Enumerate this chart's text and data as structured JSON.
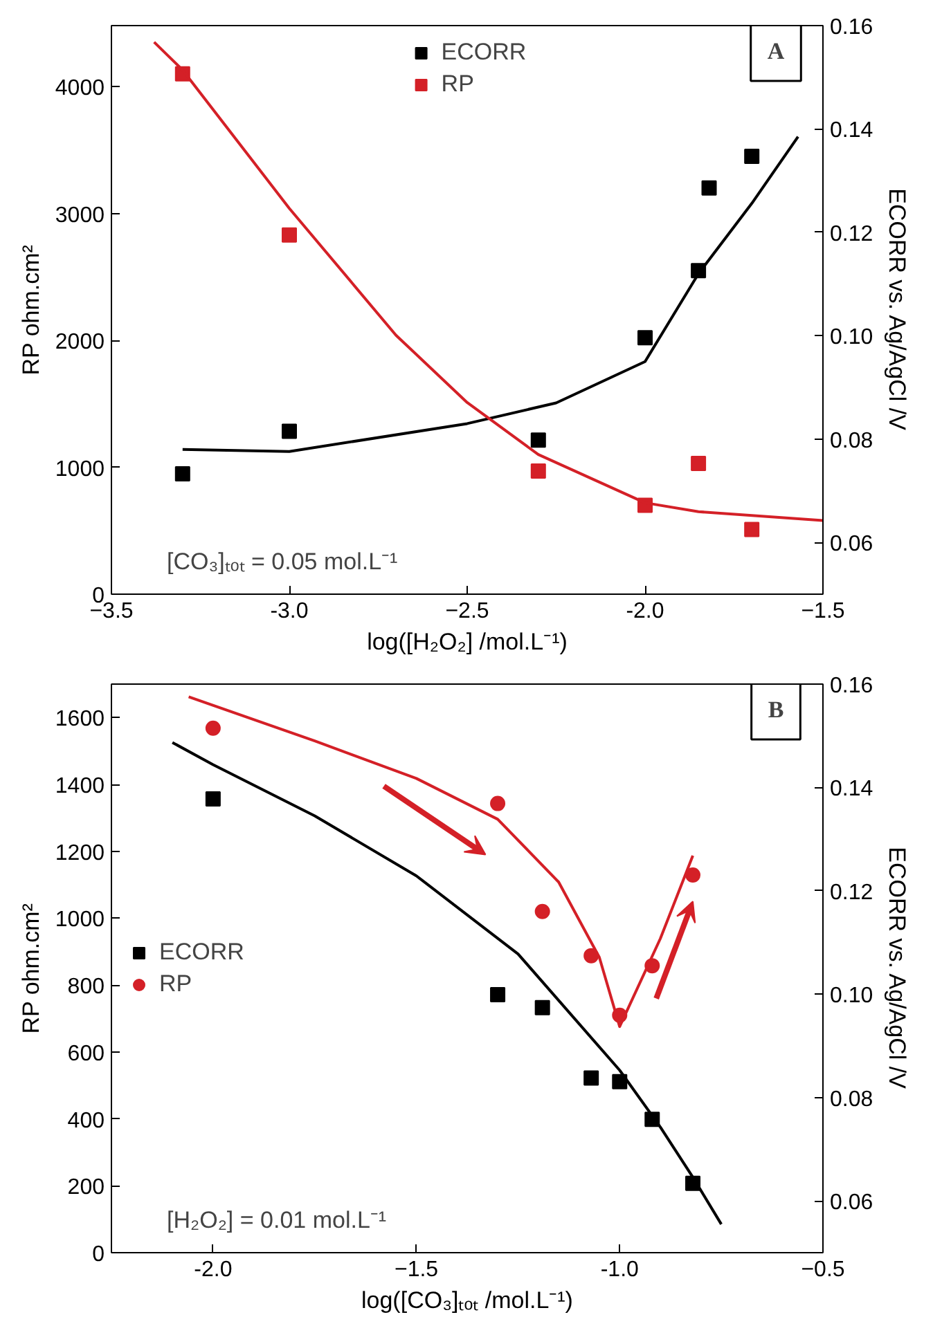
{
  "chart_data": [
    {
      "type": "scatter",
      "xlabel": "log([H₂O₂] /mol.L⁻¹)",
      "ylabel": "RP ohm.cm²",
      "y2label": "ECORR vs. Ag/AgCl /V",
      "annotations": [
        "A",
        "[CO₃]ₜₒₜ = 0.05 mol.L⁻¹"
      ],
      "xlim": [
        -3.5,
        -1.5
      ],
      "xticks": [
        -3.5,
        {
          "value": -3.0,
          "label": "-3.0"
        },
        -2.5,
        {
          "value": -2.0,
          "label": "-2.0"
        },
        -1.5
      ],
      "ylim": [
        0,
        4480
      ],
      "yticks": [
        0,
        1000,
        2000,
        3000,
        4000
      ],
      "y2lim": [
        0.05,
        0.16
      ],
      "y2ticks": [
        0.06,
        0.08,
        {
          "value": 0.1,
          "label": "0.10"
        },
        0.12,
        0.14,
        0.16
      ],
      "grid": false,
      "legend": "top",
      "series": [
        {
          "name": "ECORR",
          "marker": "square",
          "color": "#000000",
          "axis": "y2",
          "x": [
            -3.3,
            -3.0,
            -2.3,
            -2.0,
            -1.85,
            -1.82,
            -1.7
          ],
          "values": [
            0.0733,
            0.0815,
            0.0798,
            0.0996,
            0.1126,
            0.1286,
            0.1347
          ]
        },
        {
          "name": "RP",
          "marker": "square",
          "color": "#d42027",
          "x": [
            -3.3,
            -3.0,
            -2.3,
            -2.0,
            -1.85,
            -1.7
          ],
          "values": [
            4100,
            2830,
            970,
            700,
            1030,
            510
          ]
        },
        {
          "type": "line",
          "color": "#000000",
          "axis": "y2",
          "x": [
            -3.3,
            -3.0,
            -2.5,
            -2.25,
            -2.0,
            -1.85,
            -1.7,
            -1.57
          ],
          "values": [
            0.078,
            0.0776,
            0.083,
            0.087,
            0.095,
            0.112,
            0.1256,
            0.1385
          ]
        },
        {
          "type": "line",
          "color": "#d42027",
          "x": [
            -3.38,
            -3.3,
            -3.0,
            -2.7,
            -2.5,
            -2.3,
            -2.0,
            -1.85,
            -1.5
          ],
          "values": [
            4350,
            4130,
            3040,
            2040,
            1510,
            1100,
            720,
            650,
            580
          ]
        }
      ]
    },
    {
      "type": "scatter",
      "xlabel": "log([CO₃]ₜₒₜ /mol.L⁻¹)",
      "ylabel": "RP ohm.cm²",
      "y2label": "ECORR vs. Ag/AgCl /V",
      "annotations": [
        "B",
        "[H₂O₂] = 0.01 mol.L⁻¹"
      ],
      "xlim": [
        -2.25,
        -0.5
      ],
      "xticks": [
        {
          "value": -2.0,
          "label": "-2.0"
        },
        -1.5,
        {
          "value": -1.0,
          "label": "-1.0"
        },
        -0.5
      ],
      "ylim": [
        0,
        1700
      ],
      "yticks": [
        0,
        200,
        400,
        600,
        800,
        1000,
        1200,
        1400,
        1600
      ],
      "y2lim": [
        0.05,
        0.16
      ],
      "y2ticks": [
        0.06,
        0.08,
        {
          "value": 0.1,
          "label": "0.10"
        },
        0.12,
        0.14,
        0.16
      ],
      "grid": false,
      "legend": "left",
      "series": [
        {
          "name": "ECORR",
          "marker": "square",
          "color": "#000000",
          "axis": "y2",
          "x": [
            -2.0,
            -1.3,
            -1.19,
            -1.07,
            -1.0,
            -0.92,
            -0.82
          ],
          "values": [
            0.1378,
            0.0999,
            0.0974,
            0.0838,
            0.0831,
            0.0758,
            0.0634
          ]
        },
        {
          "name": "RP",
          "marker": "circle",
          "color": "#d42027",
          "x": [
            -2.0,
            -1.3,
            -1.19,
            -1.07,
            -1.0,
            -0.92,
            -0.82
          ],
          "values": [
            1568,
            1343,
            1020,
            888,
            710,
            858,
            1129
          ]
        },
        {
          "type": "line",
          "color": "#000000",
          "axis": "y2",
          "x": [
            -2.1,
            -2.0,
            -1.75,
            -1.5,
            -1.25,
            -1.0,
            -0.9,
            -0.82,
            -0.75
          ],
          "values": [
            0.1487,
            0.1444,
            0.1345,
            0.1229,
            0.1078,
            0.0853,
            0.0743,
            0.0646,
            0.0555
          ]
        },
        {
          "type": "line",
          "color": "#d42027",
          "x": [
            -2.06,
            -1.75,
            -1.5,
            -1.3,
            -1.15,
            -1.05,
            -1.0,
            -0.9,
            -0.82
          ],
          "values": [
            1662,
            1530,
            1418,
            1296,
            1108,
            883,
            676,
            939,
            1187
          ]
        }
      ]
    }
  ]
}
